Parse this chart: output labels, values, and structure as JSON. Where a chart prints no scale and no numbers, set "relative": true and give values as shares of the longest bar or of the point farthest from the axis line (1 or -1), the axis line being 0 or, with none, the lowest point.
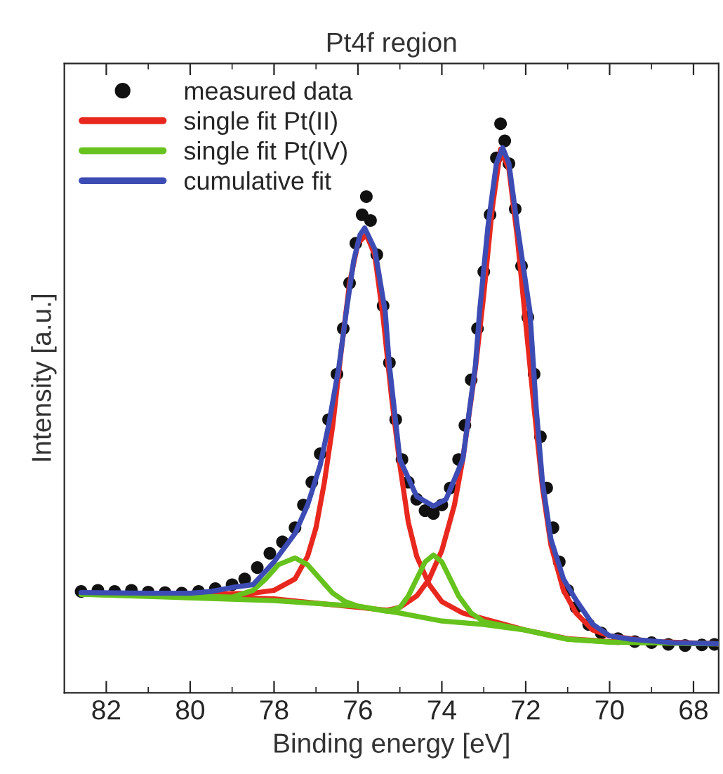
{
  "chart_data": {
    "type": "line",
    "title": "Pt4f region",
    "xlabel": "Binding energy [eV]",
    "ylabel": "Intensity [a.u.]",
    "relative": true,
    "legend": "top left",
    "grid": false,
    "xlim": [
      83,
      67.4
    ],
    "xticks": [
      82,
      {
        "value": 81,
        "label": null
      },
      80,
      {
        "value": 79,
        "label": null
      },
      78,
      {
        "value": 77,
        "label": null
      },
      76,
      {
        "value": 75,
        "label": null
      },
      74,
      {
        "value": 73,
        "label": null
      },
      72,
      {
        "value": 71,
        "label": null
      },
      70,
      {
        "value": 69,
        "label": null
      },
      68
    ],
    "series": [
      {
        "name": "measured data",
        "type": "scatter",
        "marker": "circle",
        "color": "#111111",
        "x": [
          82.6,
          82.2,
          81.8,
          81.4,
          81.0,
          80.6,
          80.2,
          79.8,
          79.4,
          79.0,
          78.7,
          78.4,
          78.1,
          77.8,
          77.5,
          77.3,
          77.1,
          76.9,
          76.7,
          76.5,
          76.35,
          76.2,
          76.05,
          75.9,
          75.8,
          75.7,
          75.55,
          75.4,
          75.25,
          75.1,
          74.95,
          74.8,
          74.6,
          74.4,
          74.2,
          74.0,
          73.8,
          73.6,
          73.45,
          73.3,
          73.15,
          73.0,
          72.85,
          72.7,
          72.6,
          72.5,
          72.4,
          72.25,
          72.1,
          71.95,
          71.8,
          71.65,
          71.5,
          71.35,
          71.2,
          71.0,
          70.8,
          70.5,
          70.2,
          69.8,
          69.4,
          69.0,
          68.6,
          68.2,
          67.8,
          67.5
        ],
        "values": [
          0.178,
          0.18,
          0.178,
          0.18,
          0.177,
          0.176,
          0.175,
          0.178,
          0.183,
          0.19,
          0.2,
          0.22,
          0.245,
          0.265,
          0.29,
          0.33,
          0.37,
          0.42,
          0.48,
          0.56,
          0.64,
          0.72,
          0.79,
          0.84,
          0.872,
          0.83,
          0.77,
          0.68,
          0.58,
          0.48,
          0.41,
          0.37,
          0.34,
          0.32,
          0.315,
          0.33,
          0.36,
          0.41,
          0.47,
          0.55,
          0.64,
          0.74,
          0.84,
          0.94,
          1.0,
          0.97,
          0.93,
          0.85,
          0.75,
          0.66,
          0.56,
          0.45,
          0.36,
          0.29,
          0.23,
          0.18,
          0.15,
          0.12,
          0.105,
          0.095,
          0.09,
          0.088,
          0.085,
          0.083,
          0.084,
          0.085
        ]
      },
      {
        "name": "single fit Pt(II)",
        "color": "#e8281e",
        "x": [
          82.6,
          80,
          78.5,
          78,
          77.5,
          77.2,
          77,
          76.8,
          76.6,
          76.4,
          76.2,
          76.0,
          75.8,
          75.6,
          75.4,
          75.2,
          75.0,
          74.8,
          74.6,
          74.3,
          74.0,
          73.5,
          73,
          72,
          71,
          70,
          67.4
        ],
        "values": [
          0.175,
          0.172,
          0.175,
          0.18,
          0.2,
          0.24,
          0.29,
          0.37,
          0.47,
          0.6,
          0.72,
          0.79,
          0.805,
          0.77,
          0.66,
          0.52,
          0.4,
          0.3,
          0.24,
          0.19,
          0.16,
          0.14,
          0.13,
          0.11,
          0.095,
          0.09,
          0.086
        ]
      },
      {
        "color": "#e8281e",
        "x": [
          82.6,
          78,
          76,
          75.3,
          75,
          74.6,
          74.3,
          74.0,
          73.7,
          73.5,
          73.2,
          73.0,
          72.8,
          72.6,
          72.4,
          72.2,
          72,
          71.8,
          71.6,
          71.4,
          71.1,
          70.8,
          70.4,
          70,
          69,
          67.4
        ],
        "values": [
          0.175,
          0.165,
          0.15,
          0.145,
          0.15,
          0.17,
          0.2,
          0.25,
          0.33,
          0.41,
          0.57,
          0.7,
          0.85,
          0.955,
          0.92,
          0.8,
          0.65,
          0.5,
          0.36,
          0.26,
          0.18,
          0.14,
          0.11,
          0.1,
          0.09,
          0.086
        ]
      },
      {
        "name": "single fit Pt(IV)",
        "color": "#66c21c",
        "x": [
          82.6,
          80,
          79,
          78.5,
          78.2,
          77.9,
          77.5,
          77.2,
          76.9,
          76.6,
          76.3,
          76,
          75,
          74,
          73,
          72,
          71,
          70,
          67.4
        ],
        "values": [
          0.173,
          0.17,
          0.168,
          0.18,
          0.2,
          0.225,
          0.237,
          0.225,
          0.2,
          0.175,
          0.16,
          0.152,
          0.14,
          0.126,
          0.12,
          0.11,
          0.094,
          0.089,
          0.086
        ]
      },
      {
        "color": "#66c21c",
        "x": [
          82.6,
          78,
          76,
          75.3,
          75,
          74.8,
          74.6,
          74.4,
          74.2,
          74.0,
          73.8,
          73.6,
          73.3,
          73,
          72,
          71,
          70,
          67.4
        ],
        "values": [
          0.173,
          0.162,
          0.152,
          0.143,
          0.15,
          0.17,
          0.2,
          0.23,
          0.242,
          0.23,
          0.2,
          0.17,
          0.14,
          0.125,
          0.11,
          0.094,
          0.089,
          0.086
        ]
      },
      {
        "name": "cumulative fit",
        "color": "#3c4cb4",
        "x": [
          82.6,
          81,
          80,
          79.5,
          79,
          78.5,
          78,
          77.5,
          77.2,
          76.9,
          76.7,
          76.45,
          76.27,
          76.1,
          75.95,
          75.84,
          75.6,
          75.35,
          75.25,
          75.0,
          74.6,
          74.2,
          73.9,
          73.5,
          73.2,
          73.1,
          72.9,
          72.7,
          72.55,
          72.4,
          72.2,
          71.9,
          71.75,
          71.6,
          71.4,
          71.1,
          70.8,
          70.4,
          70,
          69.5,
          68.5,
          67.4
        ],
        "values": [
          0.176,
          0.175,
          0.175,
          0.178,
          0.185,
          0.19,
          0.23,
          0.28,
          0.33,
          0.4,
          0.47,
          0.575,
          0.674,
          0.76,
          0.805,
          0.817,
          0.78,
          0.67,
          0.575,
          0.41,
          0.345,
          0.328,
          0.34,
          0.41,
          0.575,
          0.67,
          0.82,
          0.93,
          0.958,
          0.93,
          0.82,
          0.67,
          0.5,
          0.37,
          0.27,
          0.2,
          0.163,
          0.12,
          0.1,
          0.094,
          0.088,
          0.086
        ]
      }
    ]
  }
}
